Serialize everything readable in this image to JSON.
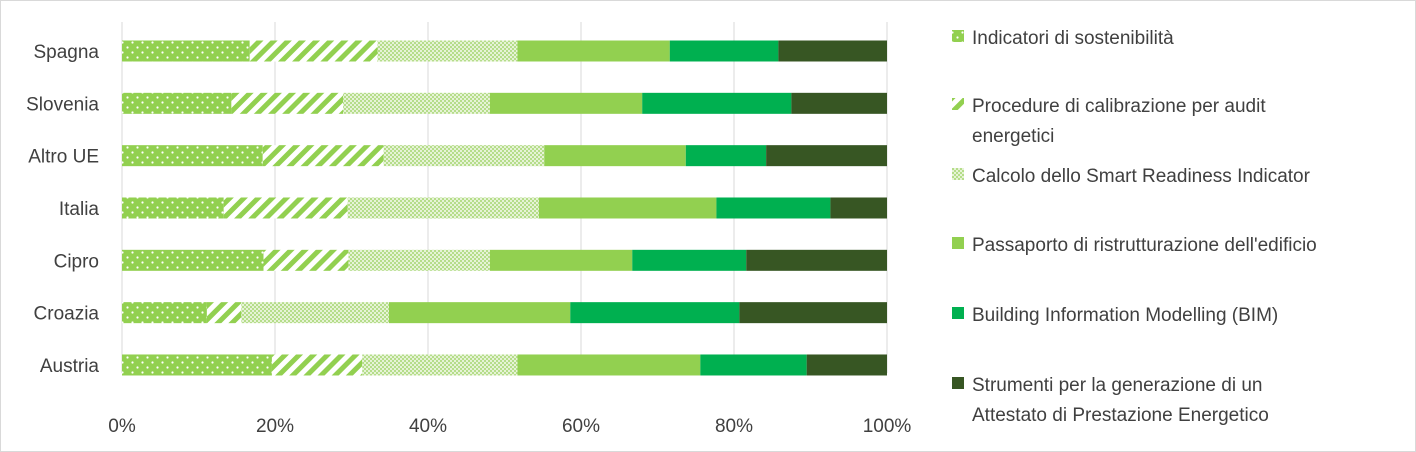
{
  "chart_data": {
    "type": "bar",
    "orientation": "horizontal",
    "stacking": "percent",
    "title": "",
    "xlabel": "",
    "ylabel": "",
    "xlim": [
      0,
      100
    ],
    "x_ticks": [
      "0%",
      "20%",
      "40%",
      "60%",
      "80%",
      "100%"
    ],
    "grid": "vertical",
    "legend_position": "right",
    "categories": [
      "Spagna",
      "Slovenia",
      "Altro UE",
      "Italia",
      "Cipro",
      "Croazia",
      "Austria"
    ],
    "series": [
      {
        "name": "Indicatori di sostenibilità",
        "pattern": "dots",
        "color": "#92D050",
        "values": [
          16.7,
          14.3,
          18.4,
          13.3,
          18.5,
          11.1,
          19.6
        ]
      },
      {
        "name": "Procedure di calibrazione per audit energetici",
        "pattern": "diagonal-stripes",
        "color": "#92D050",
        "values": [
          16.7,
          14.6,
          15.8,
          16.2,
          11.1,
          4.5,
          11.8
        ]
      },
      {
        "name": "Calcolo dello Smart Readiness Indicator",
        "pattern": "crosshatch",
        "color": "#C7E6A4",
        "values": [
          18.3,
          19.2,
          21.0,
          25.0,
          18.5,
          19.3,
          20.3
        ]
      },
      {
        "name": "Passaporto di ristrutturazione dell'edificio",
        "pattern": "solid",
        "color": "#92D050",
        "values": [
          19.9,
          19.9,
          18.5,
          23.2,
          18.6,
          23.7,
          23.9
        ]
      },
      {
        "name": "Building Information Modelling (BIM)",
        "pattern": "solid",
        "color": "#00B050",
        "values": [
          14.2,
          19.5,
          10.5,
          14.9,
          14.9,
          22.1,
          13.9
        ]
      },
      {
        "name": "Strumenti per la generazione di un Attestato di Prestazione Energetico",
        "pattern": "solid",
        "color": "#375623",
        "values": [
          14.2,
          12.5,
          15.8,
          7.4,
          18.4,
          19.3,
          10.5
        ]
      }
    ]
  },
  "legend_lines": [
    [
      "Indicatori di sostenibilità"
    ],
    [
      "Procedure di calibrazione per audit",
      "energetici"
    ],
    [
      "Calcolo dello Smart Readiness Indicator"
    ],
    [
      "Passaporto di ristrutturazione dell'edificio"
    ],
    [
      "Building Information Modelling (BIM)"
    ],
    [
      "Strumenti per la generazione di un",
      "Attestato di Prestazione Energetico"
    ]
  ],
  "colors": {
    "grid": "#D9D9D9",
    "border": "#D9D9D9",
    "text": "#404040",
    "light_green": "#92D050",
    "pale_green": "#C7E6A4",
    "green": "#00B050",
    "dark_green": "#375623"
  }
}
